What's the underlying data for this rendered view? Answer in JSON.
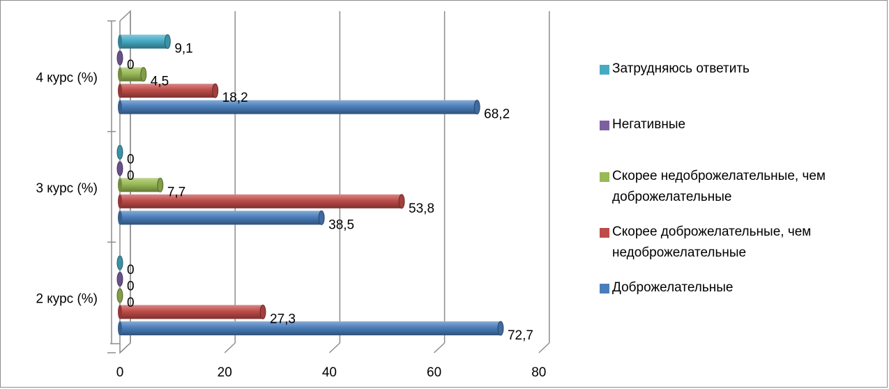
{
  "chart_data": {
    "type": "bar",
    "orientation": "horizontal",
    "style": "3d-cylinder",
    "categories": [
      "2 курс (%)",
      "3 курс (%)",
      "4 курс (%)"
    ],
    "series": [
      {
        "name": "Доброжелательные",
        "color": "#4a7ebb",
        "values": [
          72.7,
          38.5,
          68.2
        ],
        "labels": [
          "72,7",
          "38,5",
          "68,2"
        ]
      },
      {
        "name": "Скорее доброжелательные, чем недоброжелательные",
        "color": "#be4b48",
        "values": [
          27.3,
          53.8,
          18.2
        ],
        "labels": [
          "27,3",
          "53,8",
          "18,2"
        ]
      },
      {
        "name": "Скорее недоброжелательные, чем доброжелательные",
        "color": "#98b954",
        "values": [
          0,
          7.7,
          4.5
        ],
        "labels": [
          "0",
          "7,7",
          "4,5"
        ]
      },
      {
        "name": "Негативные",
        "color": "#7d60a0",
        "values": [
          0,
          0,
          0
        ],
        "labels": [
          "0",
          "0",
          "0"
        ]
      },
      {
        "name": "Затрудняюсь ответить",
        "color": "#46aac5",
        "values": [
          0,
          0,
          9.1
        ],
        "labels": [
          "0",
          "0",
          "9,1"
        ]
      }
    ],
    "x_ticks": [
      "0",
      "20",
      "40",
      "60",
      "80"
    ],
    "xlim": [
      0,
      80
    ],
    "grid": true,
    "legend_position": "right"
  }
}
